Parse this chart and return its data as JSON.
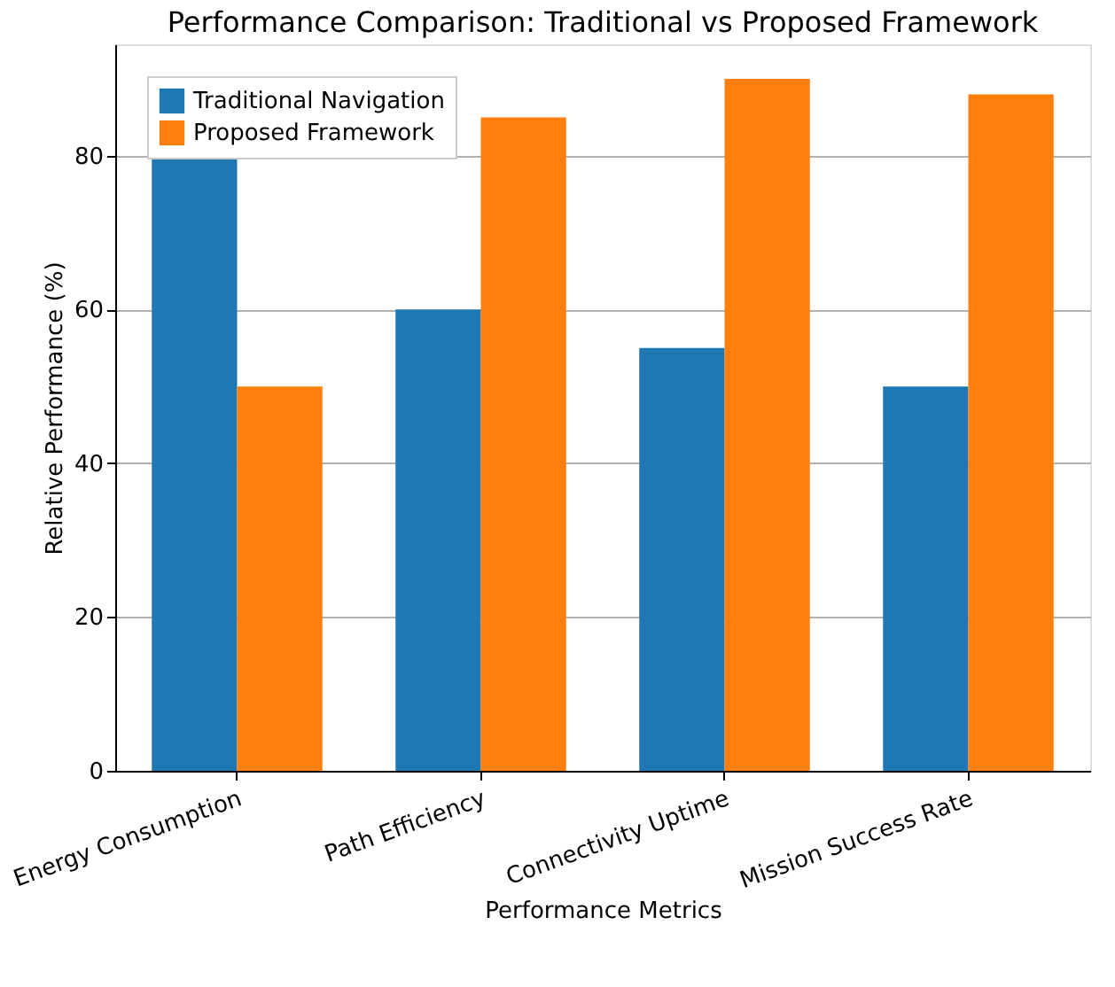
{
  "chart_data": {
    "type": "bar",
    "title": "Performance Comparison: Traditional vs Proposed Framework",
    "xlabel": "Performance Metrics",
    "ylabel": "Relative Performance (%)",
    "categories": [
      "Energy Consumption",
      "Path Efficiency",
      "Connectivity Uptime",
      "Mission Success Rate"
    ],
    "series": [
      {
        "name": "Traditional Navigation",
        "color": "#1f77b4",
        "values": [
          80,
          60,
          55,
          50
        ]
      },
      {
        "name": "Proposed Framework",
        "color": "#ff7f0e",
        "values": [
          50,
          85,
          90,
          88
        ]
      }
    ],
    "ylim": [
      0,
      94.5
    ],
    "yticks": [
      0,
      20,
      40,
      60,
      80
    ],
    "grid": "y",
    "legend": "top left"
  }
}
